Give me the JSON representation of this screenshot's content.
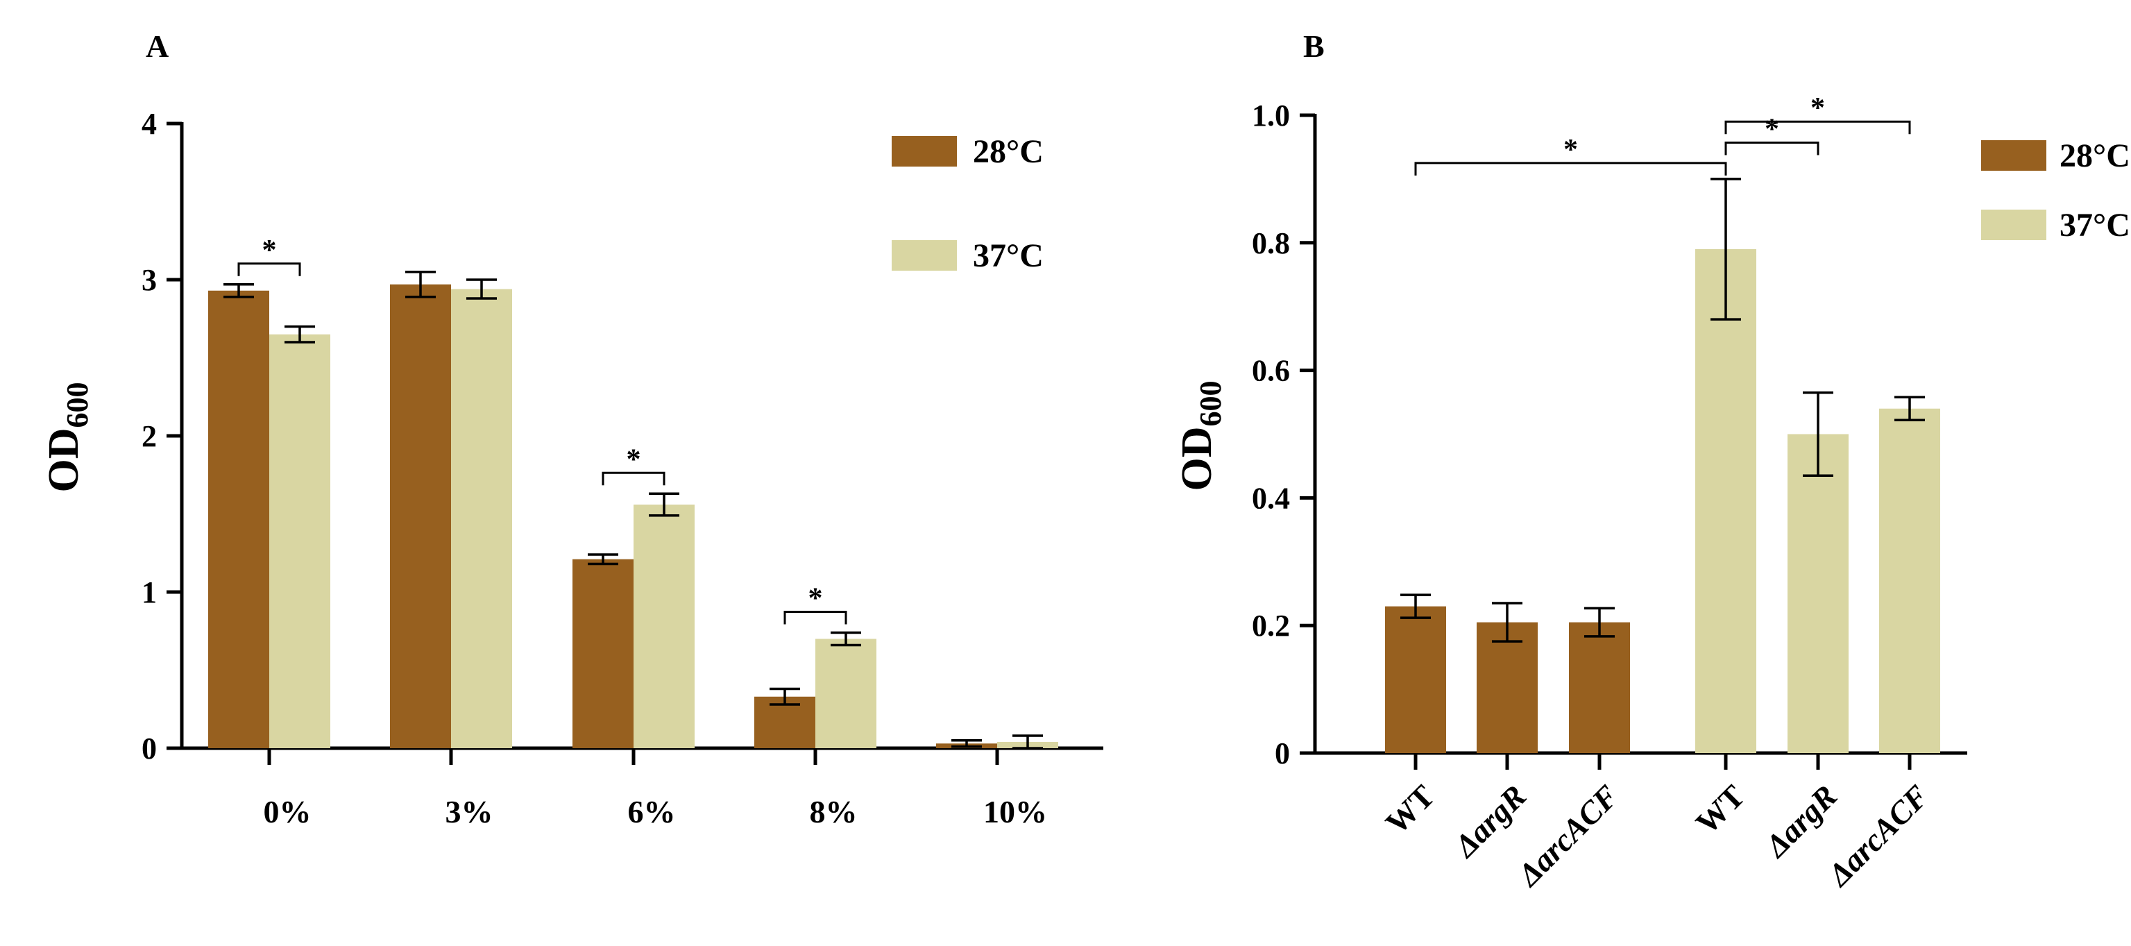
{
  "chart_data": [
    {
      "panel": "A",
      "type": "bar",
      "ylabel": "OD",
      "ylabel_sub": "600",
      "ylim": [
        0,
        4
      ],
      "yticks": [
        0,
        1,
        2,
        3,
        4
      ],
      "categories": [
        "0%",
        "3%",
        "6%",
        "8%",
        "10%"
      ],
      "series": [
        {
          "name": "28°C",
          "color": "#97601f",
          "values": [
            2.93,
            2.97,
            1.21,
            0.33,
            0.03
          ],
          "errors": [
            0.04,
            0.08,
            0.03,
            0.05,
            0.02
          ]
        },
        {
          "name": "37°C",
          "color": "#d9d6a2",
          "values": [
            2.65,
            2.94,
            1.56,
            0.7,
            0.04
          ],
          "errors": [
            0.05,
            0.06,
            0.07,
            0.04,
            0.04
          ]
        }
      ],
      "significance": [
        {
          "category": "0%",
          "label": "*"
        },
        {
          "category": "6%",
          "label": "*"
        },
        {
          "category": "8%",
          "label": "*"
        }
      ],
      "legend_position": "top-right"
    },
    {
      "panel": "B",
      "type": "bar",
      "ylabel": "OD",
      "ylabel_sub": "600",
      "ylim": [
        0,
        1.0
      ],
      "yticks": [
        "0",
        "0.2",
        "0.4",
        "0.6",
        "0.8",
        "1.0"
      ],
      "categories": [
        {
          "prefix": "",
          "name": "WT"
        },
        {
          "prefix": "Δ",
          "name": "argR"
        },
        {
          "prefix": "Δ",
          "name": "arcACF"
        },
        {
          "prefix": "",
          "name": "WT"
        },
        {
          "prefix": "Δ",
          "name": "argR"
        },
        {
          "prefix": "Δ",
          "name": "arcACF"
        }
      ],
      "series": [
        {
          "name": "28°C",
          "color": "#97601f",
          "values": [
            0.23,
            0.205,
            0.205,
            null,
            null,
            null
          ],
          "errors": [
            0.018,
            0.03,
            0.022,
            null,
            null,
            null
          ]
        },
        {
          "name": "37°C",
          "color": "#d9d6a2",
          "values": [
            null,
            null,
            null,
            0.79,
            0.5,
            0.54
          ],
          "errors": [
            null,
            null,
            null,
            0.11,
            0.065,
            0.018
          ]
        }
      ],
      "significance": [
        {
          "from": 0,
          "to": 3,
          "label": "*"
        },
        {
          "from": 3,
          "to": 4,
          "label": "*"
        },
        {
          "from": 3,
          "to": 5,
          "label": "*"
        }
      ],
      "legend_position": "top-right"
    }
  ]
}
